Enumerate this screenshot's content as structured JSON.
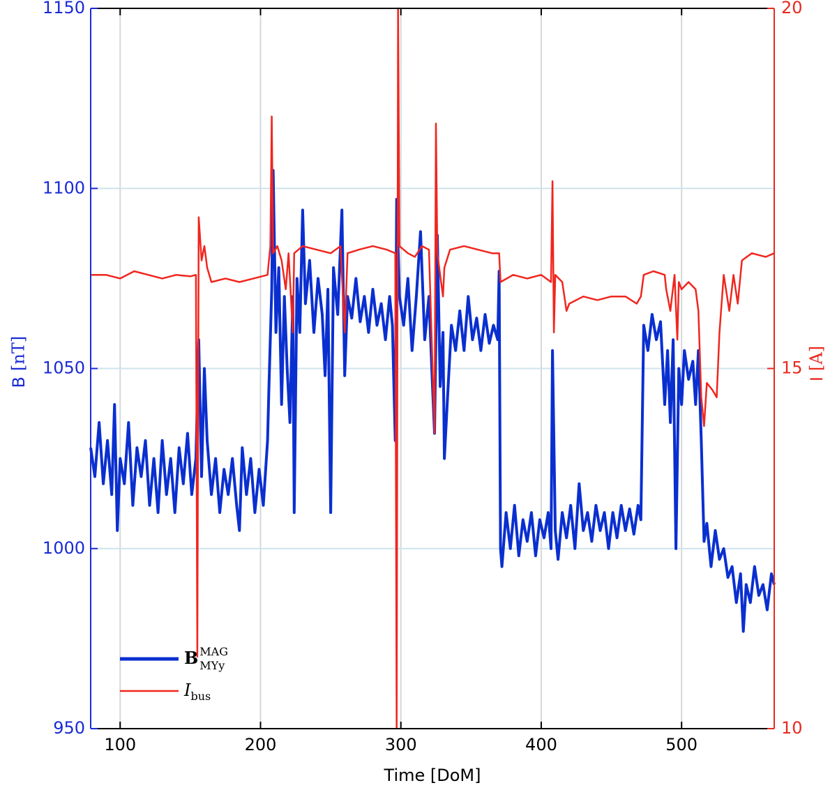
{
  "chart_data": {
    "type": "line",
    "xlabel": "Time [DoM]",
    "ylabel": "B",
    "ylabel_unit": "[nT]",
    "y2label": "I",
    "y2label_unit": "[A]",
    "xlim": [
      79,
      566
    ],
    "xticks": [
      100,
      200,
      300,
      400,
      500
    ],
    "ylim": [
      950,
      1150
    ],
    "yticks": [
      950,
      1000,
      1050,
      1100,
      1150
    ],
    "y2lim": [
      10,
      20
    ],
    "y2ticks": [
      10,
      15,
      20
    ],
    "grid": true,
    "legend": "lower left",
    "ycolor": "#1a2ad6",
    "y2color": "#e8291f",
    "series": [
      {
        "name": "B",
        "name_sup": "MAG",
        "name_sub": "MYy",
        "color": "#0a2fd0",
        "axis": "y",
        "x": [
          79,
          82,
          85,
          88,
          91,
          94,
          96,
          98,
          100,
          103,
          106,
          109,
          112,
          115,
          118,
          121,
          124,
          127,
          130,
          133,
          136,
          139,
          142,
          145,
          148,
          151,
          154,
          156,
          158,
          160,
          162,
          165,
          168,
          171,
          174,
          177,
          180,
          183,
          185,
          187,
          190,
          193,
          196,
          199,
          202,
          205,
          206,
          208,
          209,
          211,
          213,
          215,
          217,
          219,
          221,
          223,
          224,
          226,
          228,
          230,
          232,
          235,
          238,
          241,
          244,
          246,
          248,
          250,
          252,
          255,
          258,
          260,
          262,
          265,
          268,
          271,
          274,
          277,
          280,
          283,
          286,
          289,
          292,
          294,
          296,
          297,
          299,
          302,
          305,
          308,
          311,
          314,
          317,
          320,
          322,
          324,
          326,
          328,
          330,
          331,
          333,
          336,
          339,
          342,
          345,
          348,
          351,
          354,
          357,
          360,
          363,
          366,
          369,
          370,
          371,
          372,
          375,
          378,
          381,
          384,
          387,
          390,
          393,
          396,
          399,
          402,
          405,
          407,
          408,
          410,
          412,
          415,
          418,
          421,
          424,
          427,
          430,
          433,
          436,
          439,
          442,
          445,
          448,
          451,
          454,
          457,
          460,
          463,
          466,
          469,
          471,
          473,
          476,
          479,
          482,
          485,
          488,
          490,
          492,
          494,
          496,
          498,
          500,
          502,
          505,
          508,
          510,
          512,
          514,
          516,
          518,
          521,
          524,
          527,
          530,
          533,
          536,
          539,
          542,
          544,
          546,
          549,
          552,
          555,
          558,
          561,
          564,
          566
        ],
        "values": [
          1028,
          1020,
          1035,
          1018,
          1030,
          1015,
          1040,
          1005,
          1025,
          1018,
          1035,
          1012,
          1028,
          1020,
          1030,
          1012,
          1025,
          1010,
          1030,
          1015,
          1025,
          1010,
          1028,
          1018,
          1032,
          1015,
          1025,
          1058,
          1020,
          1050,
          1030,
          1015,
          1025,
          1010,
          1022,
          1015,
          1025,
          1012,
          1005,
          1028,
          1015,
          1025,
          1010,
          1022,
          1012,
          1030,
          1045,
          1072,
          1105,
          1060,
          1078,
          1040,
          1070,
          1050,
          1035,
          1070,
          1010,
          1075,
          1060,
          1094,
          1068,
          1080,
          1060,
          1075,
          1065,
          1048,
          1072,
          1010,
          1078,
          1065,
          1094,
          1048,
          1070,
          1064,
          1075,
          1063,
          1070,
          1060,
          1072,
          1062,
          1068,
          1058,
          1070,
          1062,
          1030,
          1097,
          1070,
          1062,
          1075,
          1055,
          1070,
          1088,
          1058,
          1070,
          1050,
          1032,
          1087,
          1045,
          1060,
          1025,
          1040,
          1062,
          1055,
          1066,
          1055,
          1070,
          1058,
          1064,
          1055,
          1065,
          1057,
          1062,
          1058,
          1077,
          1000,
          995,
          1010,
          1000,
          1012,
          998,
          1008,
          1002,
          1010,
          998,
          1008,
          1003,
          1010,
          1000,
          1055,
          1005,
          997,
          1010,
          1003,
          1012,
          1000,
          1018,
          1005,
          1010,
          1002,
          1012,
          1005,
          1010,
          1000,
          1010,
          1003,
          1012,
          1005,
          1011,
          1004,
          1012,
          1008,
          1062,
          1055,
          1065,
          1058,
          1063,
          1040,
          1055,
          1035,
          1058,
          1000,
          1050,
          1040,
          1055,
          1047,
          1052,
          1040,
          1055,
          1030,
          1002,
          1007,
          995,
          1005,
          997,
          1000,
          992,
          995,
          985,
          993,
          977,
          990,
          985,
          995,
          987,
          990,
          983,
          993,
          990
        ]
      },
      {
        "name": "I",
        "name_sub": "bus",
        "color": "#f0261e",
        "axis": "y2",
        "x": [
          79,
          90,
          100,
          110,
          120,
          130,
          140,
          150,
          154,
          155,
          156,
          158,
          160,
          162,
          165,
          175,
          185,
          195,
          205,
          207,
          208,
          209,
          212,
          215,
          218,
          220,
          223,
          224,
          230,
          240,
          250,
          257,
          260,
          262,
          270,
          280,
          290,
          296,
          297,
          298,
          299,
          305,
          310,
          315,
          320,
          324,
          325,
          326,
          330,
          331,
          335,
          345,
          355,
          365,
          370,
          371,
          380,
          390,
          400,
          407,
          408,
          409,
          410,
          415,
          418,
          420,
          430,
          440,
          450,
          460,
          468,
          471,
          473,
          480,
          488,
          489,
          492,
          495,
          497,
          498,
          500,
          505,
          510,
          512,
          514,
          516,
          518,
          522,
          525,
          527,
          530,
          534,
          537,
          540,
          543,
          550,
          560,
          566
        ],
        "values": [
          16.3,
          16.3,
          16.25,
          16.35,
          16.3,
          16.25,
          16.3,
          16.28,
          16.3,
          11.0,
          17.1,
          16.5,
          16.7,
          16.4,
          16.2,
          16.25,
          16.2,
          16.25,
          16.3,
          16.7,
          18.5,
          16.6,
          16.7,
          16.5,
          16.1,
          16.6,
          15.5,
          16.6,
          16.7,
          16.65,
          16.6,
          16.7,
          15.5,
          16.6,
          16.65,
          16.7,
          16.65,
          16.6,
          10.0,
          20.0,
          16.7,
          16.6,
          16.55,
          16.7,
          16.65,
          14.1,
          18.4,
          16.6,
          16.0,
          16.4,
          16.65,
          16.7,
          16.65,
          16.6,
          16.6,
          16.2,
          16.3,
          16.25,
          16.3,
          16.2,
          17.6,
          15.5,
          16.3,
          16.2,
          15.8,
          15.9,
          16.0,
          15.95,
          16.0,
          16.0,
          15.9,
          16.0,
          16.3,
          16.35,
          16.3,
          16.1,
          15.8,
          16.3,
          15.4,
          16.2,
          16.1,
          16.2,
          16.1,
          15.8,
          14.6,
          14.2,
          14.8,
          14.7,
          14.6,
          15.5,
          16.3,
          15.8,
          16.3,
          15.9,
          16.5,
          16.6,
          16.55,
          16.6
        ]
      }
    ]
  }
}
